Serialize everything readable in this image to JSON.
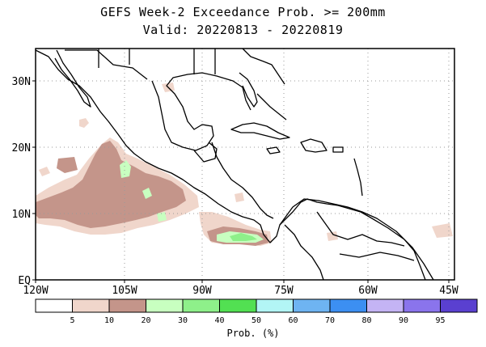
{
  "title": "GEFS Week-2 Exceedance Prob. >= 200mm",
  "subtitle": "Valid: 20220813 - 20220819",
  "lat_labels": [
    "30N",
    "20N",
    "10N",
    "EQ"
  ],
  "lon_labels": [
    "120W",
    "105W",
    "90W",
    "75W",
    "60W",
    "45W"
  ],
  "legend": {
    "colors": [
      "#ffffff",
      "#f0d6cb",
      "#c4958a",
      "#c8ffc0",
      "#8ef08a",
      "#52e052",
      "#b2f5f5",
      "#6eb4f2",
      "#3c8ff2",
      "#c4b4f4",
      "#8a74ec",
      "#5a40d0"
    ],
    "ticks": [
      "5",
      "10",
      "20",
      "30",
      "40",
      "50",
      "60",
      "70",
      "80",
      "90",
      "95"
    ],
    "label": "Prob. (%)"
  },
  "map": {
    "colors": {
      "land": "#000000",
      "grid": "#9a9a9a",
      "frame": "#000000"
    },
    "projection": "lat-lon",
    "lon_range": [
      "120W",
      "42W"
    ],
    "lat_range": [
      "EQ",
      "35N"
    ],
    "shaded_regions": [
      "eastern Pacific off southern Mexico (10-20%)",
      "eastern Pacific off Central America (20-40%)"
    ]
  }
}
